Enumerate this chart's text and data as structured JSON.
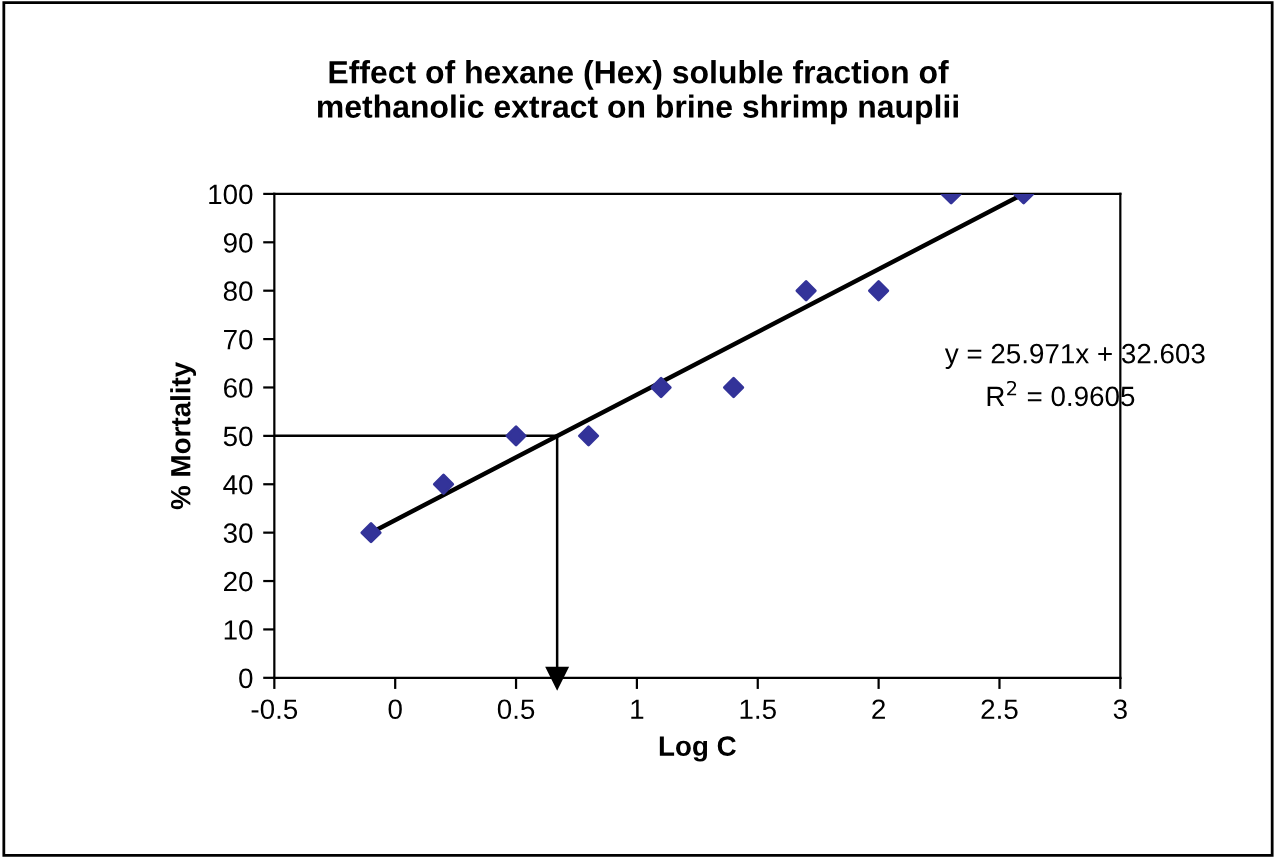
{
  "chart_data": {
    "type": "scatter",
    "title": "Effect of hexane (Hex) soluble fraction of\nmethanolic extract on brine shrimp nauplii",
    "xlabel": "Log C",
    "ylabel": "% Mortality",
    "series": [
      {
        "color": "#333399",
        "marker": "diamond",
        "x": [
          -0.1,
          0.2,
          0.5,
          0.8,
          1.1,
          1.4,
          1.7,
          2.0,
          2.3,
          2.6
        ],
        "values": [
          30,
          40,
          50,
          50,
          60,
          60,
          80,
          80,
          100,
          100
        ]
      },
      {
        "type": "line",
        "color": "#000000",
        "marker": "none",
        "x": [
          -0.1,
          2.6
        ],
        "values": [
          30,
          100
        ]
      },
      {
        "type": "line",
        "color": "#000000",
        "marker": "none",
        "x": [
          -0.5,
          0.67,
          0.67
        ],
        "values": [
          50,
          50,
          0
        ]
      }
    ],
    "annotations": [
      "y = 25.971x + 32.603",
      "R$^{2}$ = 0.9605"
    ],
    "xlim": [
      -0.5,
      3
    ],
    "xticks": [
      -0.5,
      0,
      0.5,
      1,
      1.5,
      2,
      2.5,
      3
    ],
    "ylim": [
      0,
      100
    ],
    "yticks": [
      0,
      10,
      20,
      30,
      40,
      50,
      60,
      70,
      80,
      90,
      100
    ],
    "grid": false,
    "legend": false
  }
}
